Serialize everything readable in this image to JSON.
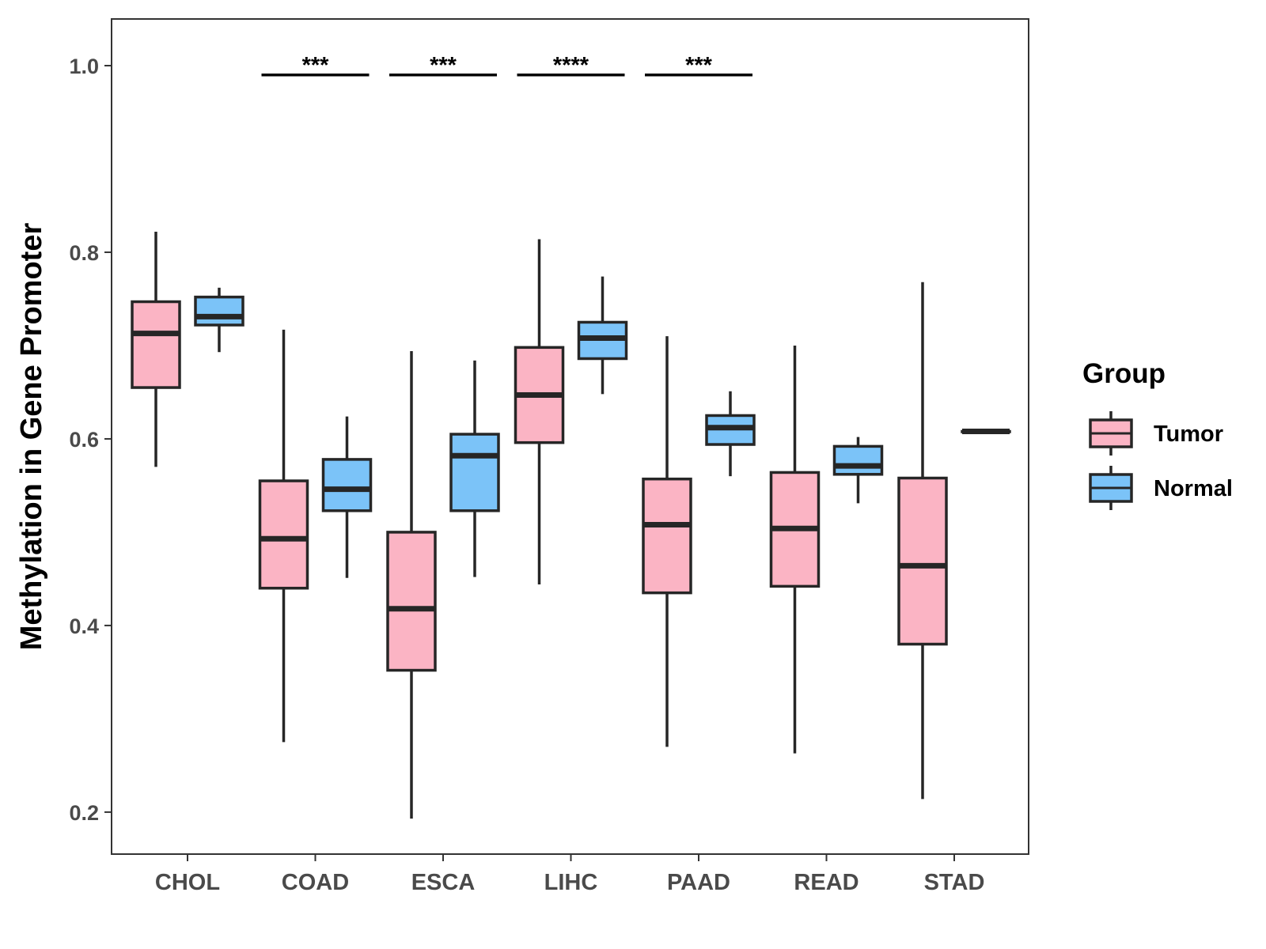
{
  "chart_data": {
    "type": "boxplot",
    "title": "",
    "xlabel": "",
    "ylabel": "Methylation in Gene Promoter",
    "ylim": [
      0.155,
      1.05
    ],
    "yticks": [
      0.2,
      0.4,
      0.6,
      0.8,
      1.0
    ],
    "ytick_labels": [
      "0.2",
      "0.4",
      "0.6",
      "0.8",
      "1.0"
    ],
    "categories": [
      "CHOL",
      "COAD",
      "ESCA",
      "LIHC",
      "PAAD",
      "READ",
      "STAD"
    ],
    "grid": false,
    "legend": {
      "title": "Group",
      "position": "right",
      "entries": [
        {
          "name": "Tumor",
          "color": "#fbb4c4"
        },
        {
          "name": "Normal",
          "color": "#7bc3f8"
        }
      ]
    },
    "series": [
      {
        "name": "Tumor",
        "color": "#fbb4c4",
        "boxes": [
          {
            "category": "CHOL",
            "min": 0.57,
            "q1": 0.655,
            "median": 0.713,
            "q3": 0.747,
            "max": 0.822
          },
          {
            "category": "COAD",
            "min": 0.275,
            "q1": 0.44,
            "median": 0.493,
            "q3": 0.555,
            "max": 0.717
          },
          {
            "category": "ESCA",
            "min": 0.193,
            "q1": 0.352,
            "median": 0.418,
            "q3": 0.5,
            "max": 0.694
          },
          {
            "category": "LIHC",
            "min": 0.444,
            "q1": 0.596,
            "median": 0.647,
            "q3": 0.698,
            "max": 0.814
          },
          {
            "category": "PAAD",
            "min": 0.27,
            "q1": 0.435,
            "median": 0.508,
            "q3": 0.557,
            "max": 0.71
          },
          {
            "category": "READ",
            "min": 0.263,
            "q1": 0.442,
            "median": 0.504,
            "q3": 0.564,
            "max": 0.7
          },
          {
            "category": "STAD",
            "min": 0.214,
            "q1": 0.38,
            "median": 0.464,
            "q3": 0.558,
            "max": 0.768
          }
        ]
      },
      {
        "name": "Normal",
        "color": "#7bc3f8",
        "boxes": [
          {
            "category": "CHOL",
            "min": 0.693,
            "q1": 0.722,
            "median": 0.731,
            "q3": 0.752,
            "max": 0.762
          },
          {
            "category": "COAD",
            "min": 0.451,
            "q1": 0.523,
            "median": 0.546,
            "q3": 0.578,
            "max": 0.624
          },
          {
            "category": "ESCA",
            "min": 0.452,
            "q1": 0.523,
            "median": 0.582,
            "q3": 0.605,
            "max": 0.684
          },
          {
            "category": "LIHC",
            "min": 0.648,
            "q1": 0.686,
            "median": 0.708,
            "q3": 0.725,
            "max": 0.774
          },
          {
            "category": "PAAD",
            "min": 0.56,
            "q1": 0.594,
            "median": 0.612,
            "q3": 0.625,
            "max": 0.651
          },
          {
            "category": "READ",
            "min": 0.531,
            "q1": 0.562,
            "median": 0.571,
            "q3": 0.592,
            "max": 0.602
          },
          {
            "category": "STAD",
            "min": 0.608,
            "q1": 0.608,
            "median": 0.608,
            "q3": 0.608,
            "max": 0.608
          }
        ]
      }
    ],
    "annotations": [
      {
        "category": "COAD",
        "label": "***",
        "y": 0.99
      },
      {
        "category": "ESCA",
        "label": "***",
        "y": 0.99
      },
      {
        "category": "LIHC",
        "label": "****",
        "y": 0.99
      },
      {
        "category": "PAAD",
        "label": "***",
        "y": 0.99
      }
    ]
  }
}
